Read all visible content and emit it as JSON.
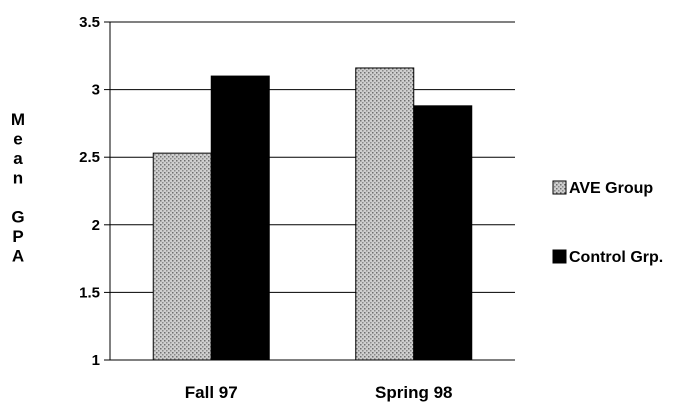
{
  "chart_data": {
    "type": "bar",
    "categories": [
      "Fall 97",
      "Spring 98"
    ],
    "series": [
      {
        "name": "AVE Group",
        "values": [
          2.53,
          3.16
        ],
        "fill": "pattern-gray"
      },
      {
        "name": "Control Grp.",
        "values": [
          3.1,
          2.88
        ],
        "fill": "#000000"
      }
    ],
    "ylabel": "Mean GPA",
    "ylabel_lines": [
      "M",
      "e",
      "a",
      "n",
      "",
      "G",
      "P",
      "A"
    ],
    "ylim": [
      1,
      3.5
    ],
    "yticks": [
      "1",
      "1.5",
      "2",
      "2.5",
      "3",
      "3.5"
    ],
    "grid": true,
    "legend_position": "right"
  }
}
